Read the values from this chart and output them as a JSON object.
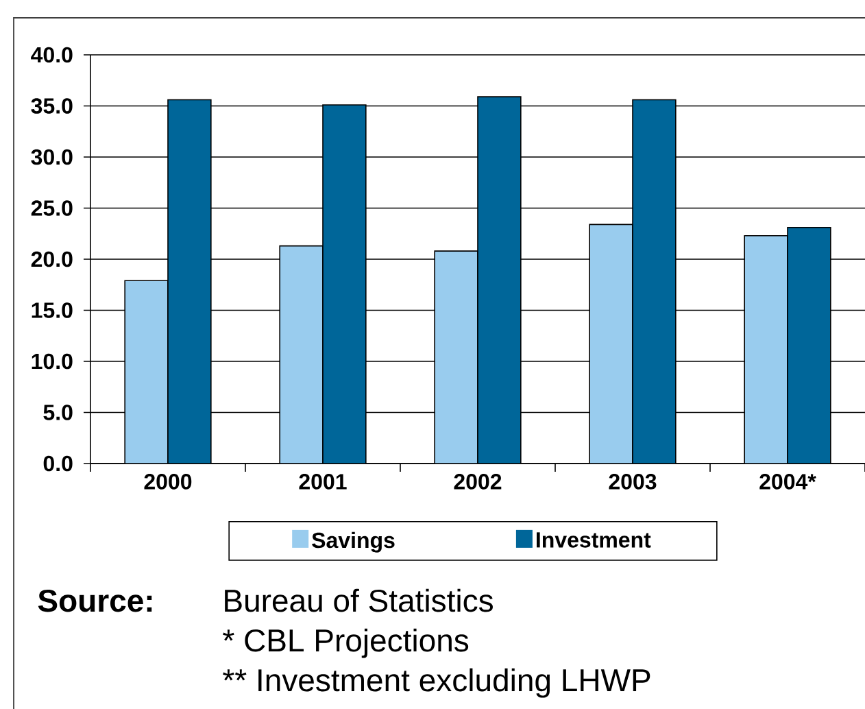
{
  "chart_data": {
    "type": "bar",
    "categories": [
      "2000",
      "2001",
      "2002",
      "2003",
      "2004*"
    ],
    "series": [
      {
        "name": "Savings",
        "color": "#99ccee",
        "values": [
          17.9,
          21.3,
          20.8,
          23.4,
          22.3
        ]
      },
      {
        "name": "Investment",
        "color": "#006699",
        "values": [
          35.6,
          35.1,
          35.9,
          35.6,
          23.1
        ]
      }
    ],
    "ylim": [
      0,
      40
    ],
    "yticks": [
      {
        "value": 0,
        "label": "0.0"
      },
      {
        "value": 5,
        "label": "5.0"
      },
      {
        "value": 10,
        "label": "10.0"
      },
      {
        "value": 15,
        "label": "15.0"
      },
      {
        "value": 20,
        "label": "20.0"
      },
      {
        "value": 25,
        "label": "25.0"
      },
      {
        "value": 30,
        "label": "30.0"
      },
      {
        "value": 35,
        "label": "35.0"
      },
      {
        "value": 40,
        "label": "40.0"
      }
    ],
    "grid": "y",
    "legend": "bottom",
    "annotations": [
      "Source:",
      "Bureau of Statistics",
      "* CBL Projections",
      "** Investment excluding LHWP"
    ]
  }
}
